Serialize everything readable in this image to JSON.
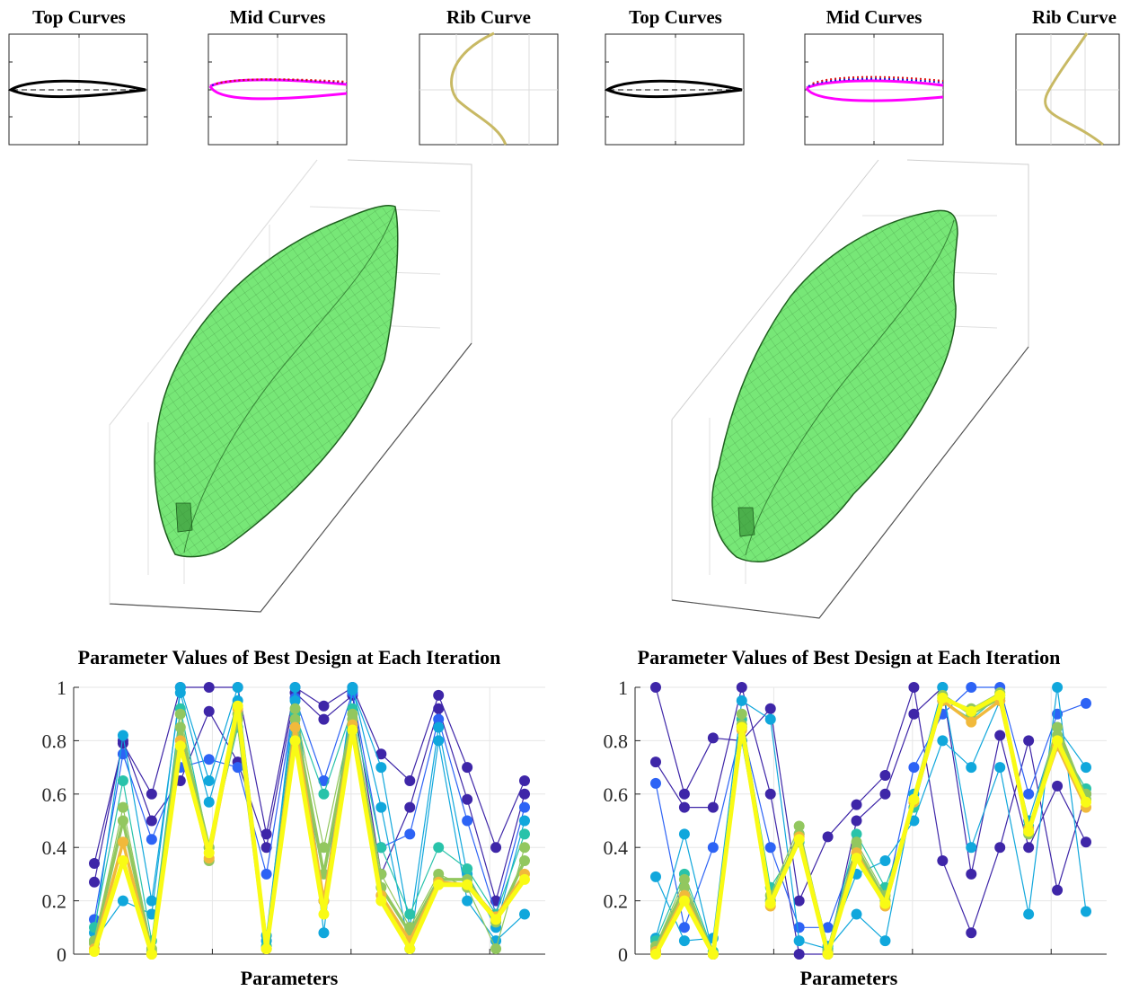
{
  "panels": [
    {
      "top_titles": [
        "Top Curves",
        "Mid Curves",
        "Rib Curve"
      ],
      "chart": {
        "title": "Parameter Values of Best Design at Each Iteration",
        "xlabel": "Parameters"
      }
    },
    {
      "top_titles": [
        "Top Curves",
        "Mid Curves",
        "Rib Curve"
      ],
      "chart": {
        "title": "Parameter Values of Best Design at Each Iteration",
        "xlabel": "Parameters"
      }
    }
  ],
  "colors": {
    "hull_fill": "#5fe35f",
    "hull_edge": "#1f5f1f",
    "mid_upper": "#1a1ad0",
    "mid_dotted": "#e01010",
    "mid_lower": "#ff00ff",
    "rib": "#c8b964",
    "colormap": [
      "#3e26a8",
      "#2d63f5",
      "#10a7dc",
      "#29c3aa",
      "#92c75f",
      "#f1b93b",
      "#f9fb15"
    ]
  },
  "chart_data": [
    {
      "type": "line",
      "ylim": [
        0,
        1
      ],
      "yticks": [
        "0",
        "0.2",
        "0.4",
        "0.6",
        "0.8",
        "1"
      ],
      "series": [
        {
          "values": [
            0.34,
            0.79,
            0.6,
            1.0,
            1.0,
            1.0,
            0.45,
            1.0,
            0.93,
            1.0,
            0.75,
            0.65,
            0.97,
            0.7,
            0.4,
            0.65
          ]
        },
        {
          "values": [
            0.27,
            0.8,
            0.5,
            0.65,
            0.91,
            0.72,
            0.4,
            0.98,
            0.88,
            0.97,
            0.3,
            0.55,
            0.92,
            0.58,
            0.2,
            0.6
          ]
        },
        {
          "values": [
            0.13,
            0.75,
            0.43,
            0.7,
            0.73,
            0.7,
            0.3,
            0.96,
            0.65,
            0.98,
            0.4,
            0.45,
            0.88,
            0.5,
            0.15,
            0.55
          ]
        },
        {
          "values": [
            0.08,
            0.82,
            0.2,
            0.98,
            0.57,
            0.95,
            0.07,
            0.95,
            0.2,
            0.99,
            0.7,
            0.1,
            0.85,
            0.3,
            0.1,
            0.5
          ]
        },
        {
          "values": [
            0.05,
            0.2,
            0.15,
            1.0,
            0.65,
            1.0,
            0.05,
            1.0,
            0.08,
            1.0,
            0.55,
            0.02,
            0.8,
            0.2,
            0.05,
            0.15
          ]
        },
        {
          "values": [
            0.1,
            0.65,
            0.05,
            0.92,
            0.4,
            0.85,
            0.03,
            0.9,
            0.6,
            0.92,
            0.4,
            0.15,
            0.4,
            0.32,
            0.15,
            0.45
          ]
        },
        {
          "values": [
            0.05,
            0.55,
            0.02,
            0.9,
            0.35,
            0.9,
            0.02,
            0.92,
            0.4,
            0.9,
            0.3,
            0.1,
            0.3,
            0.25,
            0.02,
            0.4
          ]
        },
        {
          "values": [
            0.04,
            0.5,
            0.01,
            0.85,
            0.4,
            0.88,
            0.02,
            0.88,
            0.3,
            0.88,
            0.25,
            0.08,
            0.28,
            0.28,
            0.12,
            0.35
          ]
        },
        {
          "values": [
            0.02,
            0.42,
            0.0,
            0.8,
            0.36,
            0.92,
            0.02,
            0.85,
            0.2,
            0.86,
            0.22,
            0.05,
            0.27,
            0.26,
            0.14,
            0.3
          ]
        },
        {
          "values": [
            0.01,
            0.35,
            0.0,
            0.78,
            0.38,
            0.93,
            0.02,
            0.8,
            0.15,
            0.84,
            0.2,
            0.02,
            0.26,
            0.26,
            0.13,
            0.28
          ]
        }
      ]
    },
    {
      "type": "line",
      "ylim": [
        0,
        1
      ],
      "yticks": [
        "0",
        "0.2",
        "0.4",
        "0.6",
        "0.8",
        "1"
      ],
      "series": [
        {
          "values": [
            1.0,
            0.6,
            0.81,
            0.8,
            0.92,
            0.2,
            0.44,
            0.56,
            0.67,
            1.0,
            0.35,
            0.08,
            0.4,
            0.8,
            0.24,
            0.6
          ]
        },
        {
          "values": [
            0.72,
            0.55,
            0.55,
            1.0,
            0.6,
            0.0,
            0.0,
            0.5,
            0.6,
            0.9,
            1.0,
            0.3,
            0.82,
            0.4,
            0.63,
            0.42
          ]
        },
        {
          "values": [
            0.64,
            0.1,
            0.4,
            0.85,
            0.4,
            0.1,
            0.1,
            0.4,
            0.2,
            0.7,
            0.9,
            1.0,
            1.0,
            0.6,
            0.9,
            0.94
          ]
        },
        {
          "values": [
            0.29,
            0.05,
            0.06,
            0.95,
            0.88,
            0.05,
            0.02,
            0.15,
            0.05,
            0.6,
            1.0,
            0.4,
            0.7,
            0.15,
            1.0,
            0.16
          ]
        },
        {
          "values": [
            0.06,
            0.45,
            0.0,
            0.8,
            0.2,
            0.45,
            0.03,
            0.3,
            0.35,
            0.5,
            0.8,
            0.7,
            0.95,
            0.5,
            0.85,
            0.7
          ]
        },
        {
          "values": [
            0.05,
            0.3,
            0.01,
            0.88,
            0.25,
            0.42,
            0.02,
            0.45,
            0.25,
            0.55,
            0.95,
            0.88,
            0.97,
            0.48,
            0.8,
            0.62
          ]
        },
        {
          "values": [
            0.03,
            0.28,
            0.0,
            0.9,
            0.22,
            0.48,
            0.01,
            0.42,
            0.22,
            0.57,
            0.96,
            0.92,
            0.98,
            0.46,
            0.82,
            0.6
          ]
        },
        {
          "values": [
            0.02,
            0.25,
            0.0,
            0.86,
            0.2,
            0.45,
            0.01,
            0.4,
            0.2,
            0.58,
            0.97,
            0.9,
            0.96,
            0.45,
            0.85,
            0.58
          ]
        },
        {
          "values": [
            0.01,
            0.22,
            0.0,
            0.84,
            0.18,
            0.44,
            0.0,
            0.38,
            0.18,
            0.57,
            0.95,
            0.87,
            0.95,
            0.47,
            0.78,
            0.55
          ]
        },
        {
          "values": [
            0.0,
            0.2,
            0.0,
            0.85,
            0.19,
            0.43,
            0.0,
            0.36,
            0.19,
            0.58,
            0.96,
            0.91,
            0.97,
            0.46,
            0.8,
            0.57
          ]
        }
      ]
    }
  ]
}
